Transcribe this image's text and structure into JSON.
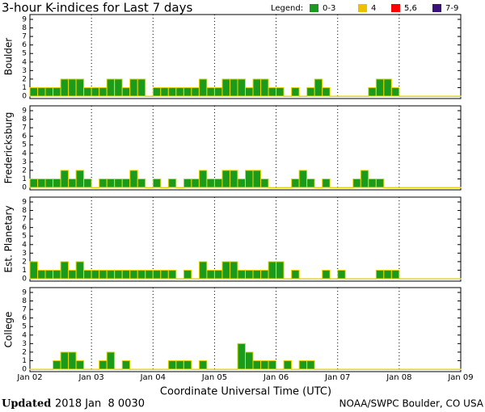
{
  "chart_data": {
    "type": "bar",
    "title": "3-hour K-indices for Last 7 days",
    "legend_title": "Legend:",
    "legend": [
      {
        "label": "0-3",
        "color": "#1c9a1c"
      },
      {
        "label": "4",
        "color": "#f0c000"
      },
      {
        "label": "5,6",
        "color": "#ff0000"
      },
      {
        "label": "7-9",
        "color": "#3a1080"
      }
    ],
    "bar_outline": "#e8d800",
    "panels": [
      {
        "ylabel": "Boulder",
        "color": "#1c9a1c",
        "values": [
          1,
          1,
          1,
          1,
          2,
          2,
          2,
          1,
          1,
          1,
          2,
          2,
          1,
          2,
          2,
          0,
          1,
          1,
          1,
          1,
          1,
          1,
          2,
          1,
          1,
          2,
          2,
          2,
          1,
          2,
          2,
          1,
          1,
          0,
          1,
          0,
          1,
          2,
          1,
          0,
          0,
          0,
          0,
          0,
          1,
          2,
          2,
          1,
          0,
          0,
          0,
          0,
          0,
          0,
          0,
          0
        ]
      },
      {
        "ylabel": "Fredericksburg",
        "color": "#1c9a1c",
        "values": [
          1,
          1,
          1,
          1,
          2,
          1,
          2,
          1,
          0,
          1,
          1,
          1,
          1,
          2,
          1,
          0,
          1,
          0,
          1,
          0,
          1,
          1,
          2,
          1,
          1,
          2,
          2,
          1,
          2,
          2,
          1,
          0,
          0,
          0,
          1,
          2,
          1,
          0,
          1,
          0,
          0,
          0,
          1,
          2,
          1,
          1,
          0,
          0,
          0,
          0,
          0,
          0,
          0,
          0,
          0,
          0
        ]
      },
      {
        "ylabel": "Est. Planetary",
        "color": "#1c9a1c",
        "values": [
          2,
          1,
          1,
          1,
          2,
          1,
          2,
          1,
          1,
          1,
          1,
          1,
          1,
          1,
          1,
          1,
          1,
          1,
          1,
          0,
          1,
          0,
          2,
          1,
          1,
          2,
          2,
          1,
          1,
          1,
          1,
          2,
          2,
          0,
          1,
          0,
          0,
          0,
          1,
          0,
          1,
          0,
          0,
          0,
          0,
          1,
          1,
          1,
          0,
          0,
          0,
          0,
          0,
          0,
          0,
          0
        ]
      },
      {
        "ylabel": "College",
        "color": "#1c9a1c",
        "values": [
          0,
          0,
          0,
          1,
          2,
          2,
          1,
          0,
          0,
          1,
          2,
          0,
          1,
          0,
          0,
          0,
          0,
          0,
          1,
          1,
          1,
          0,
          1,
          0,
          0,
          0,
          0,
          3,
          2,
          1,
          1,
          1,
          0,
          1,
          0,
          1,
          1,
          0,
          0,
          0,
          0,
          0,
          0,
          0,
          0,
          0,
          0,
          0,
          0,
          0,
          0,
          0,
          0,
          0,
          0,
          0
        ]
      }
    ],
    "ylim": [
      0,
      9
    ],
    "yticks": [
      0,
      1,
      2,
      3,
      4,
      5,
      6,
      7,
      8,
      9
    ],
    "xlim": [
      0,
      7
    ],
    "xticks": [
      {
        "value": 0,
        "label": "Jan 02"
      },
      {
        "value": 1,
        "label": "Jan 03"
      },
      {
        "value": 2,
        "label": "Jan 04"
      },
      {
        "value": 3,
        "label": "Jan 05"
      },
      {
        "value": 4,
        "label": "Jan 06"
      },
      {
        "value": 5,
        "label": "Jan 07"
      },
      {
        "value": 6,
        "label": "Jan 08"
      },
      {
        "value": 7,
        "label": "Jan 09"
      }
    ],
    "grid": true,
    "xlabel": "Coordinate Universal Time (UTC)",
    "updated_label": "Updated",
    "updated": "2018 Jan  8 0030",
    "credit": "NOAA/SWPC Boulder, CO USA"
  }
}
